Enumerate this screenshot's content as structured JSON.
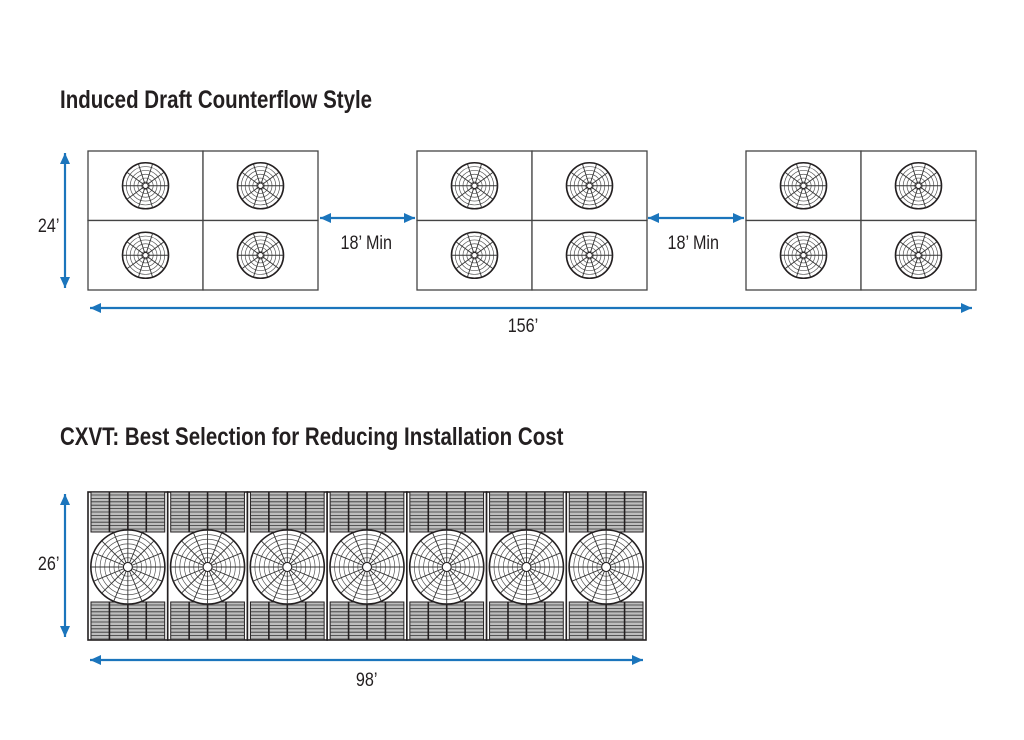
{
  "section1": {
    "title": "Induced Draft Counterflow Style",
    "height_label": "24’",
    "gap_labels": [
      "18’ Min",
      "18’ Min"
    ],
    "width_label": "156’",
    "unit_groups": 3,
    "fans_per_group": 4
  },
  "section2": {
    "title": "CXVT: Best Selection for Reducing Installation Cost",
    "height_label": "26’",
    "width_label": "98’",
    "units": 7
  },
  "colors": {
    "arrow": "#1b75bc",
    "line": "#231f20",
    "text": "#231f20"
  }
}
